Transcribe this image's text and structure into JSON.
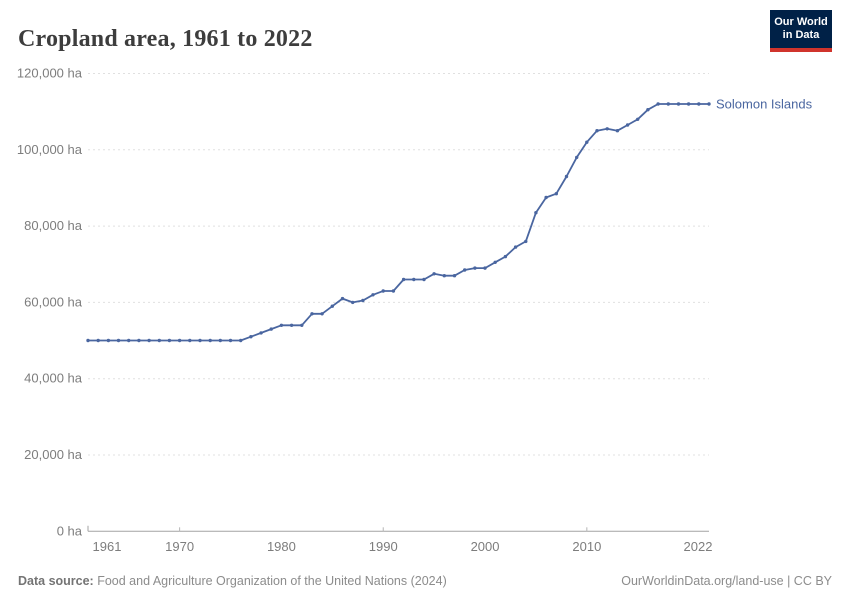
{
  "header": {
    "title": "Cropland area, 1961 to 2022"
  },
  "logo": {
    "line1": "Our World",
    "line2": "in Data",
    "bg_color": "#002147",
    "accent_color": "#d0342c"
  },
  "chart_data": {
    "type": "line",
    "title": "Cropland area, 1961 to 2022",
    "xlabel": "",
    "ylabel": "",
    "unit": "ha",
    "grid": true,
    "legend_position": "right of line end",
    "xlim": [
      1961,
      2022
    ],
    "ylim": [
      0,
      120000
    ],
    "yticks": [
      0,
      20000,
      40000,
      60000,
      80000,
      100000,
      120000
    ],
    "ytick_labels": [
      "0 ha",
      "20,000 ha",
      "40,000 ha",
      "60,000 ha",
      "80,000 ha",
      "100,000 ha",
      "120,000 ha"
    ],
    "xticks": [
      1961,
      1970,
      1980,
      1990,
      2000,
      2010,
      2022
    ],
    "xtick_labels": [
      "1961",
      "1970",
      "1980",
      "1990",
      "2000",
      "2010",
      "2022"
    ],
    "line_color": "#4a66a0",
    "series": [
      {
        "name": "Solomon Islands",
        "x": [
          1961,
          1962,
          1963,
          1964,
          1965,
          1966,
          1967,
          1968,
          1969,
          1970,
          1971,
          1972,
          1973,
          1974,
          1975,
          1976,
          1977,
          1978,
          1979,
          1980,
          1981,
          1982,
          1983,
          1984,
          1985,
          1986,
          1987,
          1988,
          1989,
          1990,
          1991,
          1992,
          1993,
          1994,
          1995,
          1996,
          1997,
          1998,
          1999,
          2000,
          2001,
          2002,
          2003,
          2004,
          2005,
          2006,
          2007,
          2008,
          2009,
          2010,
          2011,
          2012,
          2013,
          2014,
          2015,
          2016,
          2017,
          2018,
          2019,
          2020,
          2021,
          2022
        ],
        "values": [
          50000,
          50000,
          50000,
          50000,
          50000,
          50000,
          50000,
          50000,
          50000,
          50000,
          50000,
          50000,
          50000,
          50000,
          50000,
          50000,
          51000,
          52000,
          53000,
          54000,
          54000,
          54000,
          57000,
          57000,
          59000,
          61000,
          60000,
          60500,
          62000,
          63000,
          63000,
          66000,
          66000,
          66000,
          67500,
          67000,
          67000,
          68500,
          69000,
          69000,
          70500,
          72000,
          74500,
          76000,
          83500,
          87500,
          88500,
          93000,
          98000,
          102000,
          105000,
          105500,
          105000,
          106500,
          108000,
          110500,
          112000,
          112000,
          112000,
          112000,
          112000,
          112000
        ]
      }
    ]
  },
  "footer": {
    "source_label": "Data source:",
    "source_text": "Food and Agriculture Organization of the United Nations (2024)",
    "credit": "OurWorldinData.org/land-use | CC BY"
  }
}
